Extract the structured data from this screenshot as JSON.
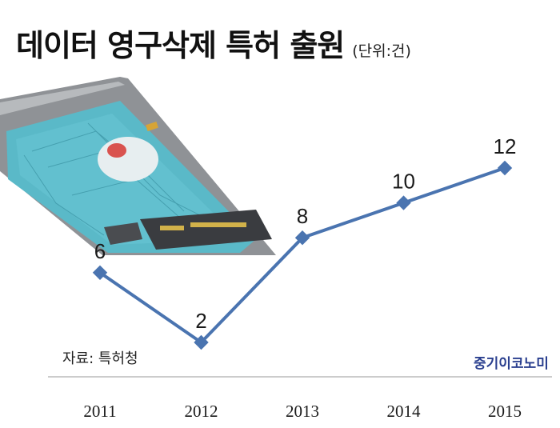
{
  "title": "데이터 영구삭제 특허 출원",
  "unit": "(단위:건)",
  "source": "자료: 특허청",
  "brand": "중기이코노미",
  "colors": {
    "line": "#4a74b0",
    "marker": "#4a74b0",
    "baseline": "#bbbbbb",
    "brand": "#2a3f8f"
  },
  "image": {
    "subject": "hard-disk-drive"
  },
  "chart_data": {
    "type": "line",
    "categories": [
      "2011",
      "2012",
      "2013",
      "2014",
      "2015"
    ],
    "series": [
      {
        "values": [
          6,
          2,
          8,
          10,
          12
        ]
      }
    ],
    "data_labels": [
      "6",
      "2",
      "8",
      "10",
      "12"
    ],
    "title": "데이터 영구삭제 특허 출원",
    "unit": "(단위:건)",
    "grid": false
  }
}
